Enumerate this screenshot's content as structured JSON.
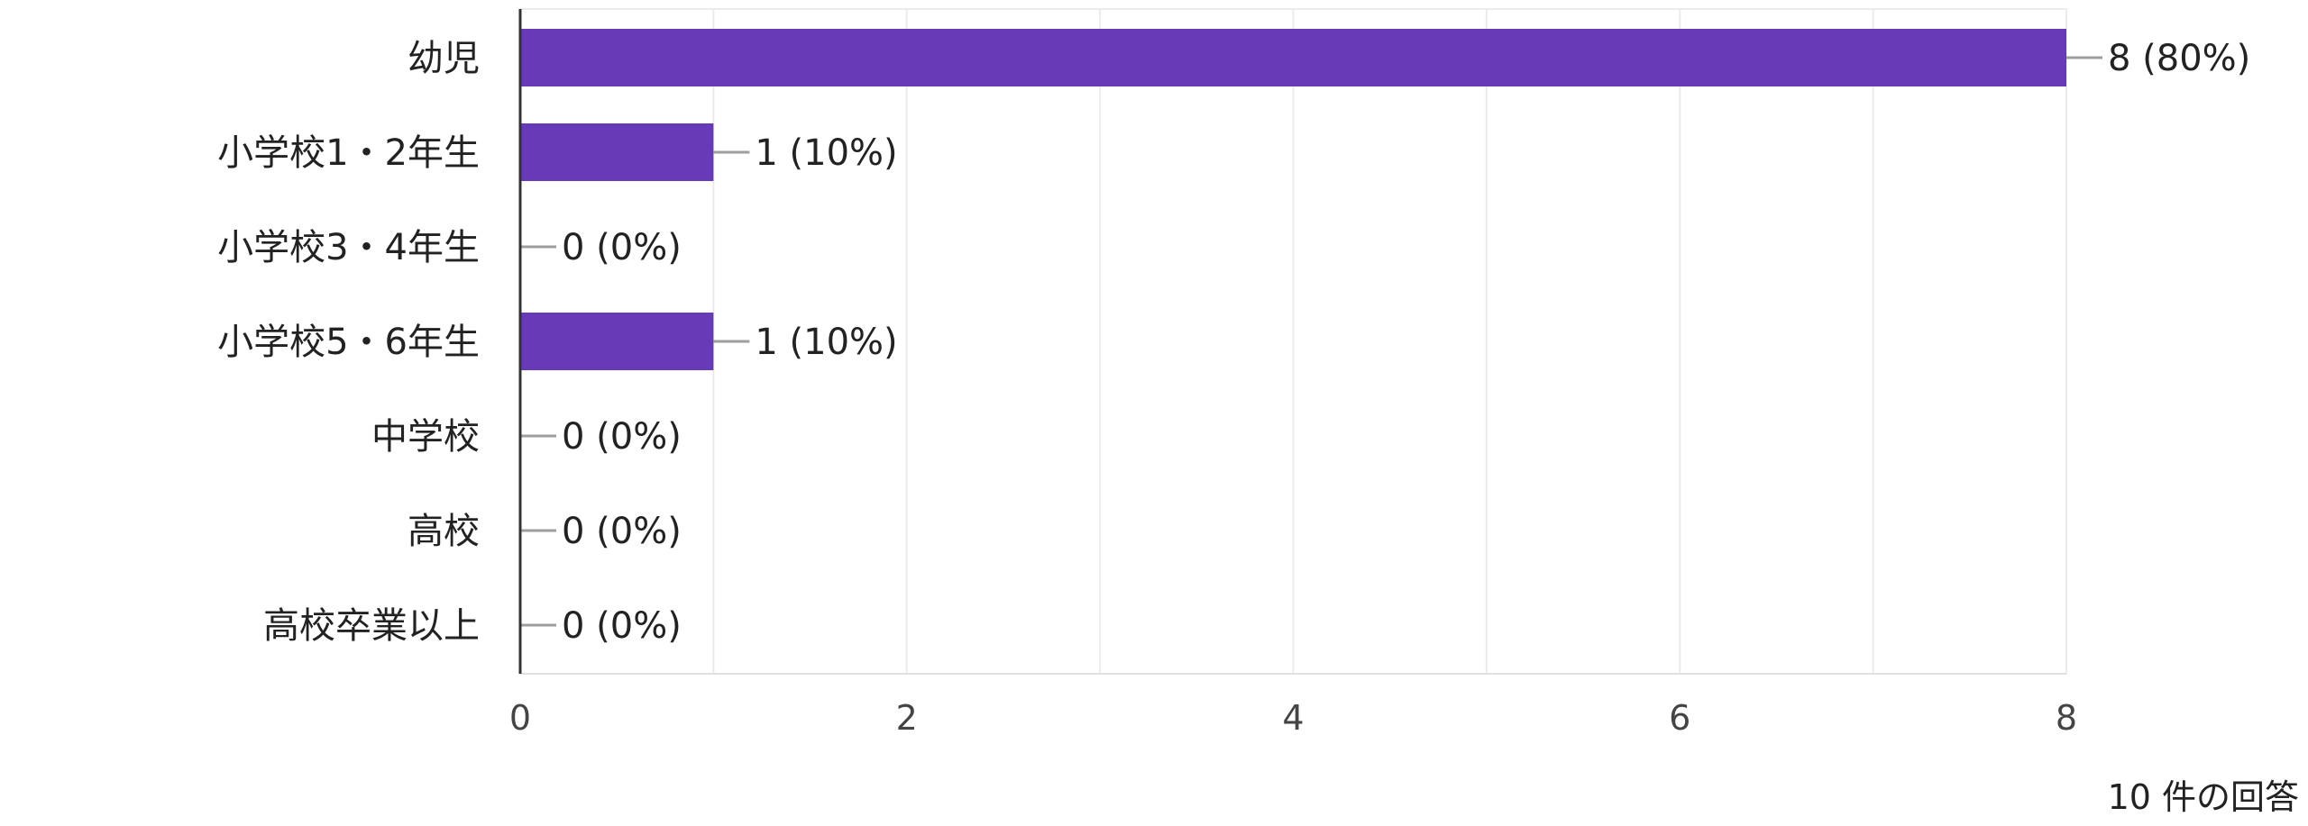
{
  "chart_data": {
    "type": "bar",
    "orientation": "horizontal",
    "categories": [
      "幼児",
      "小学校1・2年生",
      "小学校3・4年生",
      "小学校5・6年生",
      "中学校",
      "高校",
      "高校卒業以上"
    ],
    "values": [
      8,
      1,
      0,
      1,
      0,
      0,
      0
    ],
    "data_labels": [
      "8 (80%)",
      "1 (10%)",
      "0 (0%)",
      "1 (10%)",
      "0 (0%)",
      "0 (0%)",
      "0 (0%)"
    ],
    "x_ticks": [
      0,
      2,
      4,
      6,
      8
    ],
    "xlim": [
      0,
      8
    ],
    "grid": true,
    "bar_color": "#673ab7",
    "title": "",
    "xlabel": "",
    "ylabel": ""
  },
  "footer": {
    "response_count": "10 件の回答"
  }
}
